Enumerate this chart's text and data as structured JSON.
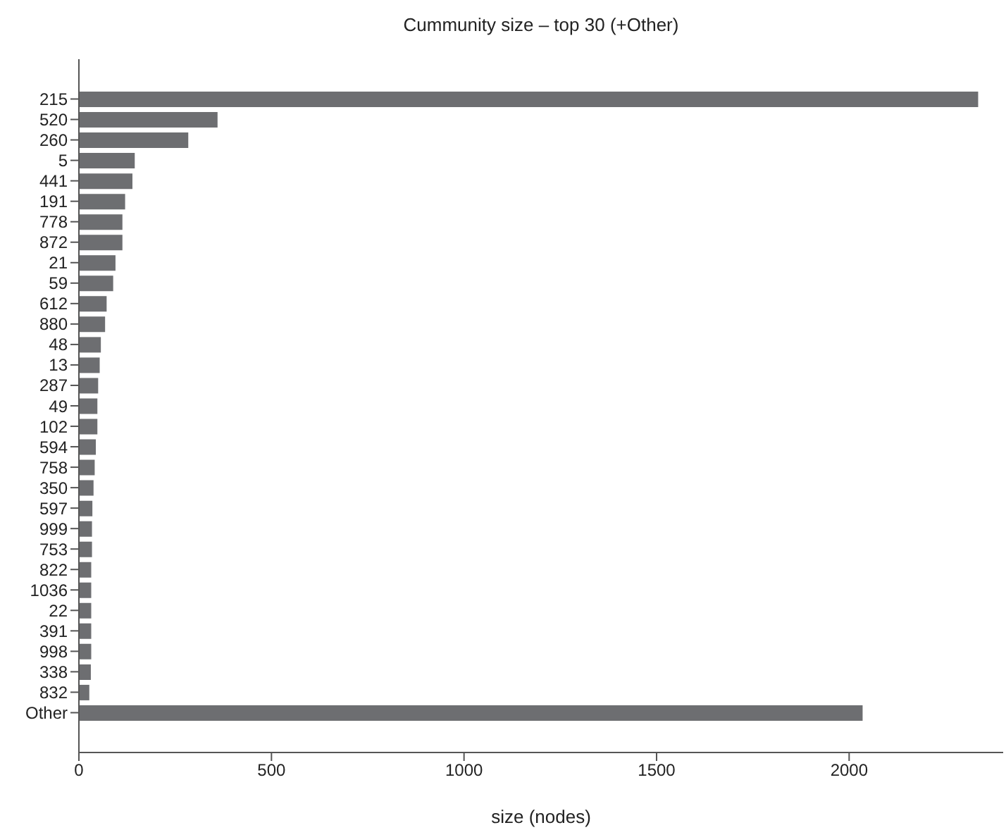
{
  "chart_data": {
    "type": "bar",
    "orientation": "horizontal",
    "title": "Cummunity size – top 30 (+Other)",
    "xlabel": "size (nodes)",
    "categories": [
      "215",
      "520",
      "260",
      "5",
      "441",
      "191",
      "778",
      "872",
      "21",
      "59",
      "612",
      "880",
      "48",
      "13",
      "287",
      "49",
      "102",
      "594",
      "758",
      "350",
      "597",
      "999",
      "753",
      "822",
      "1036",
      "22",
      "391",
      "998",
      "338",
      "832",
      "Other"
    ],
    "values": [
      2335,
      360,
      284,
      145,
      139,
      120,
      113,
      113,
      95,
      89,
      72,
      68,
      57,
      54,
      50,
      48,
      48,
      44,
      41,
      38,
      35,
      34,
      34,
      32,
      32,
      32,
      32,
      32,
      31,
      27,
      2035
    ],
    "color": "#6d6e71",
    "xlim": [
      0,
      2400
    ],
    "xticks": [
      0,
      500,
      1000,
      1500,
      2000
    ],
    "grid": false
  }
}
